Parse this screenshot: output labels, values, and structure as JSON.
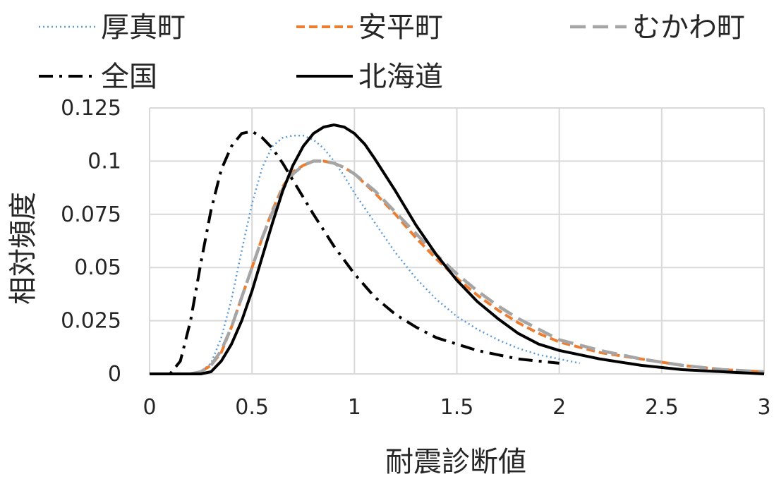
{
  "chart_data": {
    "type": "line",
    "xlabel": "耐震診断値",
    "ylabel": "相対頻度",
    "xlim": [
      0,
      3
    ],
    "ylim": [
      0,
      0.125
    ],
    "x_ticks": [
      "0",
      "0.5",
      "1",
      "1.5",
      "2",
      "2.5",
      "3"
    ],
    "y_ticks": [
      "0",
      "0.025",
      "0.05",
      "0.075",
      "0.1",
      "0.125"
    ],
    "grid": true,
    "legend_position": "top",
    "series": [
      {
        "name": "厚真町",
        "color": "#5b9bd5",
        "style": "dotted",
        "points": [
          [
            0.2,
            0
          ],
          [
            0.25,
            0.001
          ],
          [
            0.3,
            0.005
          ],
          [
            0.35,
            0.017
          ],
          [
            0.4,
            0.035
          ],
          [
            0.45,
            0.058
          ],
          [
            0.5,
            0.08
          ],
          [
            0.55,
            0.097
          ],
          [
            0.6,
            0.107
          ],
          [
            0.65,
            0.111
          ],
          [
            0.7,
            0.112
          ],
          [
            0.75,
            0.112
          ],
          [
            0.8,
            0.11
          ],
          [
            0.85,
            0.106
          ],
          [
            0.9,
            0.1
          ],
          [
            0.95,
            0.093
          ],
          [
            1.0,
            0.085
          ],
          [
            1.1,
            0.071
          ],
          [
            1.2,
            0.057
          ],
          [
            1.3,
            0.045
          ],
          [
            1.4,
            0.035
          ],
          [
            1.5,
            0.027
          ],
          [
            1.6,
            0.021
          ],
          [
            1.7,
            0.016
          ],
          [
            1.8,
            0.012
          ],
          [
            1.9,
            0.009
          ],
          [
            2.0,
            0.007
          ],
          [
            2.1,
            0.005
          ]
        ]
      },
      {
        "name": "安平町",
        "color": "#ed7d31",
        "style": "dashed",
        "points": [
          [
            0.2,
            0
          ],
          [
            0.25,
            0.001
          ],
          [
            0.3,
            0.004
          ],
          [
            0.35,
            0.01
          ],
          [
            0.4,
            0.022
          ],
          [
            0.45,
            0.036
          ],
          [
            0.5,
            0.05
          ],
          [
            0.55,
            0.064
          ],
          [
            0.6,
            0.077
          ],
          [
            0.65,
            0.088
          ],
          [
            0.7,
            0.095
          ],
          [
            0.75,
            0.098
          ],
          [
            0.8,
            0.1
          ],
          [
            0.85,
            0.1
          ],
          [
            0.9,
            0.099
          ],
          [
            0.95,
            0.097
          ],
          [
            1.0,
            0.094
          ],
          [
            1.1,
            0.085
          ],
          [
            1.2,
            0.075
          ],
          [
            1.3,
            0.064
          ],
          [
            1.4,
            0.054
          ],
          [
            1.5,
            0.045
          ],
          [
            1.6,
            0.037
          ],
          [
            1.7,
            0.03
          ],
          [
            1.8,
            0.024
          ],
          [
            1.9,
            0.019
          ],
          [
            2.0,
            0.015
          ],
          [
            2.2,
            0.01
          ],
          [
            2.4,
            0.007
          ],
          [
            2.6,
            0.004
          ],
          [
            2.8,
            0.002
          ],
          [
            3.0,
            0.001
          ]
        ]
      },
      {
        "name": "むかわ町",
        "color": "#a5a5a5",
        "style": "long-dashed",
        "points": [
          [
            0.2,
            0
          ],
          [
            0.25,
            0.001
          ],
          [
            0.3,
            0.004
          ],
          [
            0.35,
            0.011
          ],
          [
            0.4,
            0.022
          ],
          [
            0.45,
            0.036
          ],
          [
            0.5,
            0.05
          ],
          [
            0.55,
            0.064
          ],
          [
            0.6,
            0.076
          ],
          [
            0.65,
            0.087
          ],
          [
            0.7,
            0.094
          ],
          [
            0.75,
            0.098
          ],
          [
            0.8,
            0.1
          ],
          [
            0.85,
            0.1
          ],
          [
            0.9,
            0.099
          ],
          [
            0.95,
            0.097
          ],
          [
            1.0,
            0.094
          ],
          [
            1.1,
            0.086
          ],
          [
            1.2,
            0.076
          ],
          [
            1.3,
            0.066
          ],
          [
            1.4,
            0.056
          ],
          [
            1.5,
            0.047
          ],
          [
            1.6,
            0.039
          ],
          [
            1.7,
            0.032
          ],
          [
            1.8,
            0.026
          ],
          [
            1.9,
            0.021
          ],
          [
            2.0,
            0.016
          ],
          [
            2.2,
            0.011
          ],
          [
            2.4,
            0.007
          ],
          [
            2.6,
            0.004
          ],
          [
            2.8,
            0.002
          ],
          [
            3.0,
            0.001
          ]
        ]
      },
      {
        "name": "全国",
        "color": "#000000",
        "style": "dash-dot",
        "points": [
          [
            0,
            0
          ],
          [
            0.1,
            0
          ],
          [
            0.15,
            0.006
          ],
          [
            0.2,
            0.025
          ],
          [
            0.25,
            0.052
          ],
          [
            0.3,
            0.077
          ],
          [
            0.35,
            0.096
          ],
          [
            0.4,
            0.107
          ],
          [
            0.45,
            0.113
          ],
          [
            0.5,
            0.114
          ],
          [
            0.55,
            0.111
          ],
          [
            0.6,
            0.106
          ],
          [
            0.65,
            0.099
          ],
          [
            0.7,
            0.091
          ],
          [
            0.8,
            0.075
          ],
          [
            0.9,
            0.06
          ],
          [
            1.0,
            0.047
          ],
          [
            1.1,
            0.036
          ],
          [
            1.2,
            0.028
          ],
          [
            1.3,
            0.022
          ],
          [
            1.4,
            0.017
          ],
          [
            1.5,
            0.014
          ],
          [
            1.6,
            0.011
          ],
          [
            1.7,
            0.009
          ],
          [
            1.8,
            0.007
          ],
          [
            1.9,
            0.006
          ],
          [
            2.0,
            0.005
          ]
        ]
      },
      {
        "name": "北海道",
        "color": "#000000",
        "style": "solid",
        "points": [
          [
            0,
            0
          ],
          [
            0.25,
            0
          ],
          [
            0.3,
            0.001
          ],
          [
            0.35,
            0.006
          ],
          [
            0.4,
            0.014
          ],
          [
            0.45,
            0.025
          ],
          [
            0.5,
            0.039
          ],
          [
            0.55,
            0.055
          ],
          [
            0.6,
            0.071
          ],
          [
            0.65,
            0.086
          ],
          [
            0.7,
            0.098
          ],
          [
            0.75,
            0.107
          ],
          [
            0.8,
            0.113
          ],
          [
            0.85,
            0.116
          ],
          [
            0.9,
            0.117
          ],
          [
            0.95,
            0.116
          ],
          [
            1.0,
            0.113
          ],
          [
            1.05,
            0.108
          ],
          [
            1.1,
            0.101
          ],
          [
            1.2,
            0.086
          ],
          [
            1.3,
            0.07
          ],
          [
            1.4,
            0.056
          ],
          [
            1.5,
            0.044
          ],
          [
            1.6,
            0.034
          ],
          [
            1.7,
            0.026
          ],
          [
            1.8,
            0.019
          ],
          [
            1.9,
            0.014
          ],
          [
            2.0,
            0.011
          ],
          [
            2.2,
            0.007
          ],
          [
            2.4,
            0.004
          ],
          [
            2.6,
            0.002
          ],
          [
            2.8,
            0.001
          ],
          [
            3.0,
            0
          ]
        ]
      }
    ]
  }
}
